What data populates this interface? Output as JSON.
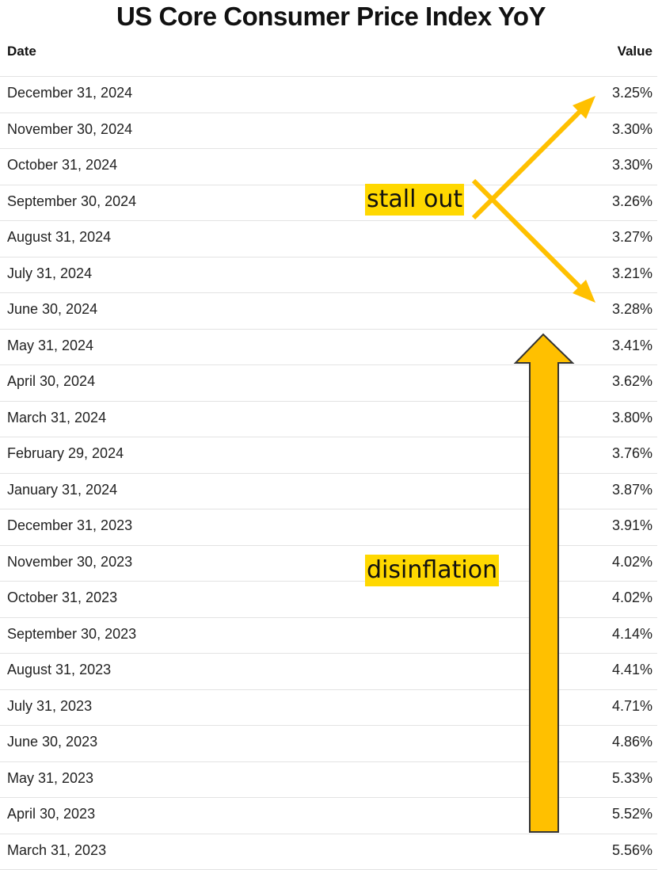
{
  "chart_data": {
    "type": "table",
    "title": "US Core Consumer Price Index YoY",
    "columns": [
      "Date",
      "Value"
    ],
    "rows": [
      {
        "date": "December 31, 2024",
        "value": "3.25%"
      },
      {
        "date": "November 30, 2024",
        "value": "3.30%"
      },
      {
        "date": "October 31, 2024",
        "value": "3.30%"
      },
      {
        "date": "September 30, 2024",
        "value": "3.26%"
      },
      {
        "date": "August 31, 2024",
        "value": "3.27%"
      },
      {
        "date": "July 31, 2024",
        "value": "3.21%"
      },
      {
        "date": "June 30, 2024",
        "value": "3.28%"
      },
      {
        "date": "May 31, 2024",
        "value": "3.41%"
      },
      {
        "date": "April 30, 2024",
        "value": "3.62%"
      },
      {
        "date": "March 31, 2024",
        "value": "3.80%"
      },
      {
        "date": "February 29, 2024",
        "value": "3.76%"
      },
      {
        "date": "January 31, 2024",
        "value": "3.87%"
      },
      {
        "date": "December 31, 2023",
        "value": "3.91%"
      },
      {
        "date": "November 30, 2023",
        "value": "4.02%"
      },
      {
        "date": "October 31, 2023",
        "value": "4.02%"
      },
      {
        "date": "September 30, 2023",
        "value": "4.14%"
      },
      {
        "date": "August 31, 2023",
        "value": "4.41%"
      },
      {
        "date": "July 31, 2023",
        "value": "4.71%"
      },
      {
        "date": "June 30, 2023",
        "value": "4.86%"
      },
      {
        "date": "May 31, 2023",
        "value": "5.33%"
      },
      {
        "date": "April 30, 2023",
        "value": "5.52%"
      },
      {
        "date": "March 31, 2023",
        "value": "5.56%"
      }
    ],
    "annotations": [
      {
        "text": "stall out",
        "marker": "x-shaped diverging arrows",
        "color": "#ffc000"
      },
      {
        "text": "disinflation",
        "marker": "large upward block arrow",
        "color": "#ffc000"
      }
    ],
    "highlight_color": "#ffd800"
  }
}
